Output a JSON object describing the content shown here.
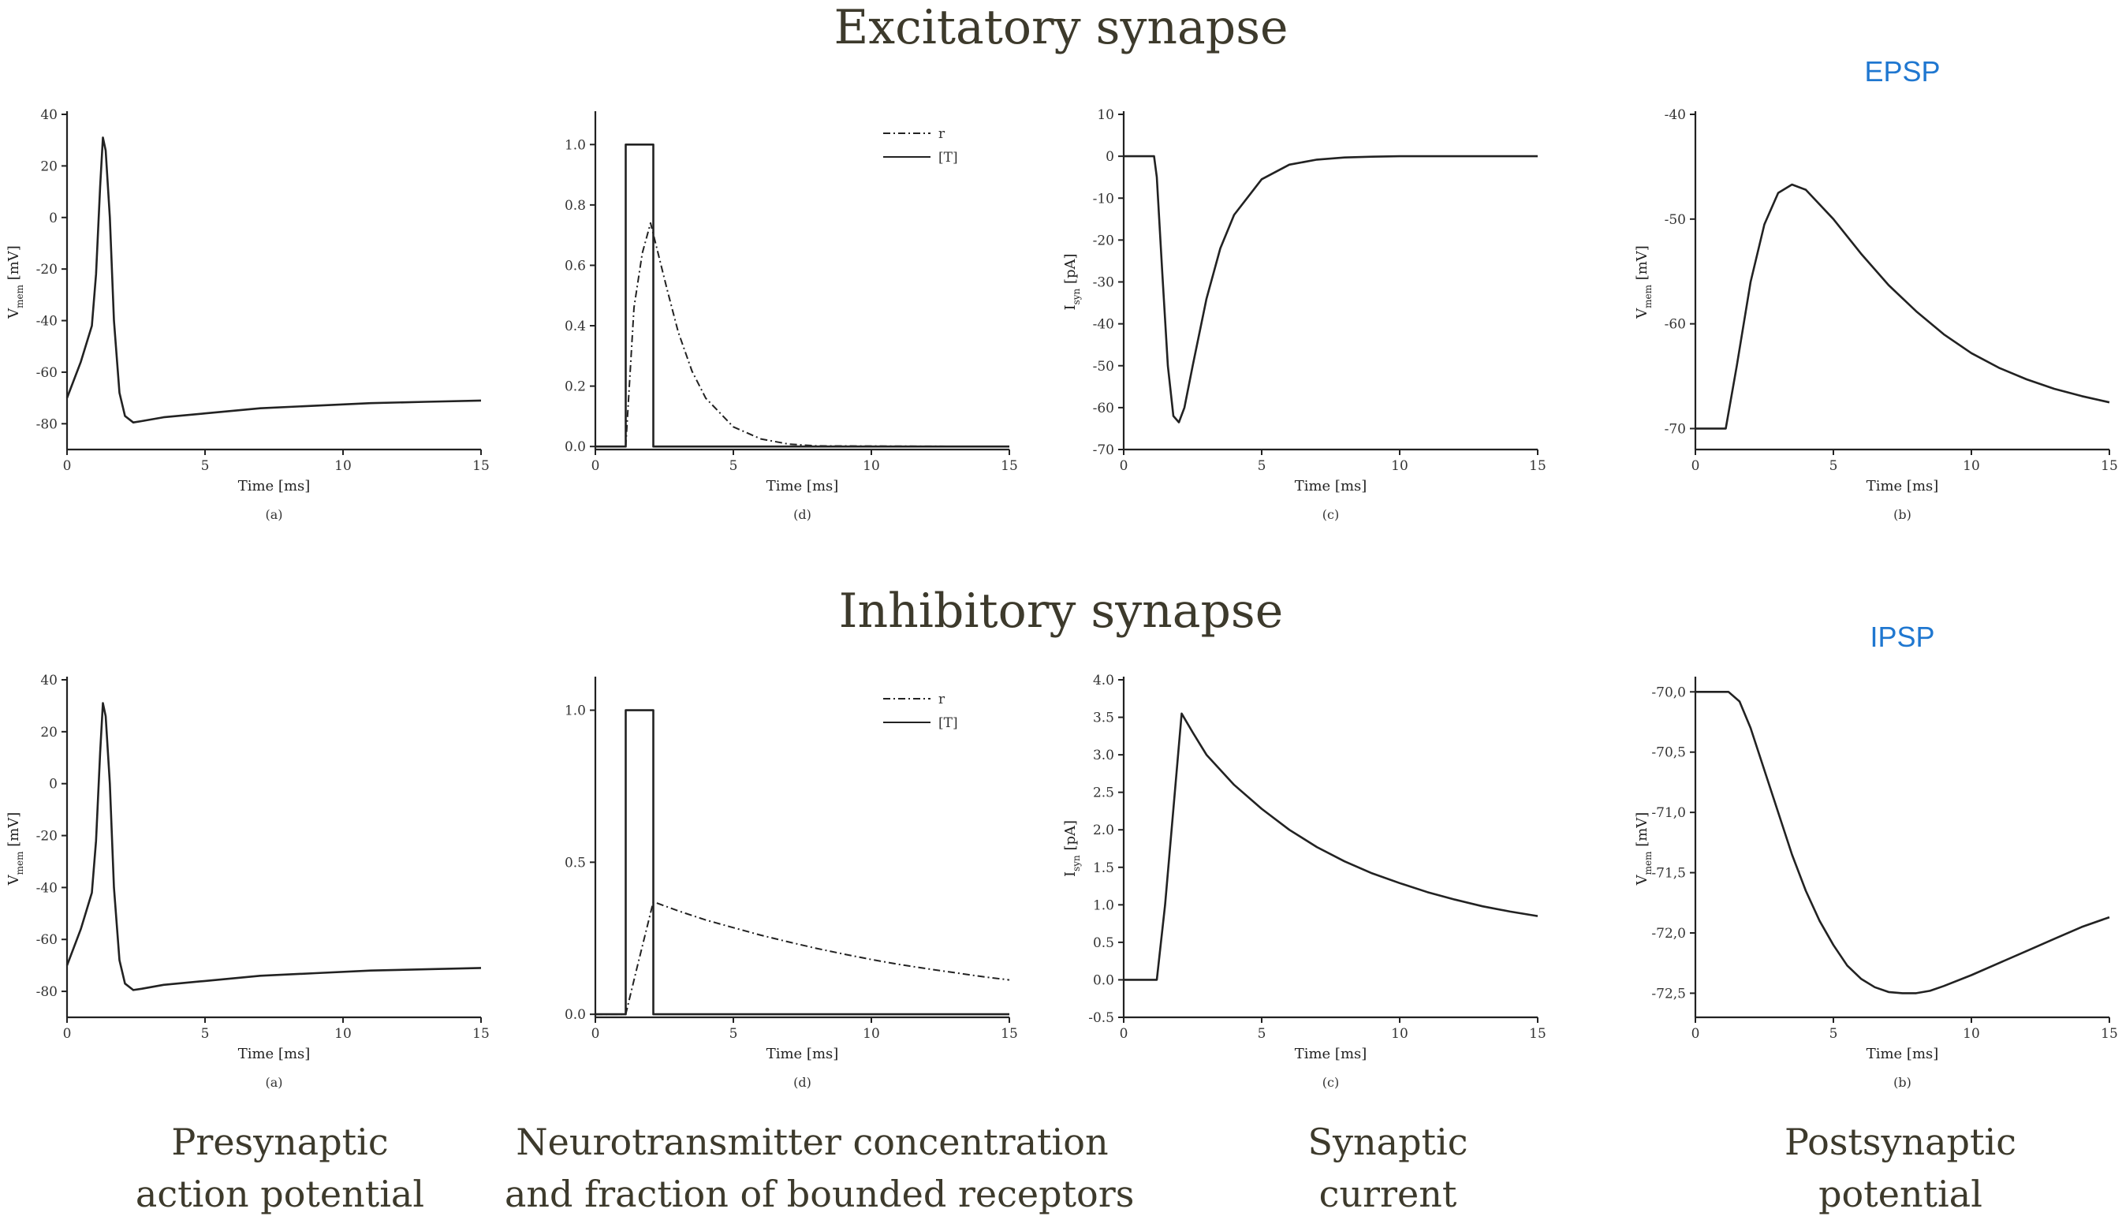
{
  "titles": {
    "excitatory": "Excitatory synapse",
    "inhibitory": "Inhibitory synapse"
  },
  "bottom_labels": [
    [
      "Presynaptic",
      "action potential"
    ],
    [
      "Neurotransmitter concentration",
      "and fraction of bounded receptors"
    ],
    [
      "Synaptic",
      "current"
    ],
    [
      "Postsynaptic",
      "potential"
    ]
  ],
  "colors": {
    "psp_title": "#1f77d0",
    "curve": "#222222",
    "heading": "#3d3a2c"
  },
  "chart_data": [
    {
      "type": "line",
      "row": "excitatory",
      "col": 0,
      "sublabel": "(a)",
      "xlabel": "Time [ms]",
      "ylabel": "V",
      "ylabel_sub": "mem",
      "ylabel_unit": " [mV]",
      "xlim": [
        0,
        15
      ],
      "ylim": [
        -90,
        40
      ],
      "xticks": [
        0,
        5,
        10,
        15
      ],
      "xticklabels": [
        "0",
        "5",
        "10",
        "15"
      ],
      "yticks": [
        -80,
        -60,
        -40,
        -20,
        0,
        20,
        40
      ],
      "yticklabels": [
        "-80",
        "-60",
        "-40",
        "-20",
        "0",
        "20",
        "40"
      ],
      "series": [
        {
          "style": "solid",
          "x": [
            0,
            0.5,
            0.9,
            1.05,
            1.2,
            1.3,
            1.4,
            1.55,
            1.7,
            1.9,
            2.1,
            2.4,
            2.7,
            3.5,
            5,
            7,
            9,
            11,
            13,
            15
          ],
          "y": [
            -70,
            -56,
            -42,
            -22,
            12,
            31,
            26,
            0,
            -40,
            -68,
            -77,
            -79.5,
            -79,
            -77.5,
            -76,
            -74,
            -73,
            -72,
            -71.5,
            -71
          ]
        }
      ]
    },
    {
      "type": "line",
      "row": "excitatory",
      "col": 1,
      "sublabel": "(d)",
      "xlabel": "Time [ms]",
      "ylabel": "",
      "ylabel_sub": "",
      "ylabel_unit": "",
      "xlim": [
        0,
        15
      ],
      "ylim": [
        -0.01,
        1.1
      ],
      "xticks": [
        0,
        5,
        10,
        15
      ],
      "xticklabels": [
        "0",
        "5",
        "10",
        "15"
      ],
      "yticks": [
        0,
        0.2,
        0.4,
        0.6,
        0.8,
        1.0
      ],
      "yticklabels": [
        "0.0",
        "0.2",
        "0.4",
        "0.6",
        "0.8",
        "1.0"
      ],
      "legend": [
        "r",
        "[T]"
      ],
      "series": [
        {
          "name": "r",
          "style": "dashdot",
          "x": [
            0,
            1.1,
            1.4,
            1.7,
            2.0,
            2.3,
            2.6,
            3,
            3.5,
            4,
            5,
            6,
            7,
            8,
            15
          ],
          "y": [
            0,
            0,
            0.46,
            0.64,
            0.74,
            0.63,
            0.52,
            0.38,
            0.25,
            0.16,
            0.065,
            0.025,
            0.008,
            0.002,
            0
          ]
        },
        {
          "name": "[T]",
          "style": "solid",
          "x": [
            0,
            1.1,
            1.1,
            2.1,
            2.1,
            15
          ],
          "y": [
            0,
            0,
            1,
            1,
            0,
            0
          ]
        }
      ]
    },
    {
      "type": "line",
      "row": "excitatory",
      "col": 2,
      "sublabel": "(c)",
      "xlabel": "Time [ms]",
      "ylabel": "I",
      "ylabel_sub": "syn",
      "ylabel_unit": " [pA]",
      "xlim": [
        0,
        15
      ],
      "ylim": [
        -70,
        10
      ],
      "xticks": [
        0,
        5,
        10,
        15
      ],
      "xticklabels": [
        "0",
        "5",
        "10",
        "15"
      ],
      "yticks": [
        -70,
        -60,
        -50,
        -40,
        -30,
        -20,
        -10,
        0,
        10
      ],
      "yticklabels": [
        "-70",
        "-60",
        "-50",
        "-40",
        "-30",
        "-20",
        "-10",
        "0",
        "10"
      ],
      "series": [
        {
          "style": "solid",
          "x": [
            0,
            1.1,
            1.2,
            1.4,
            1.6,
            1.8,
            2.0,
            2.2,
            2.5,
            3,
            3.5,
            4,
            5,
            6,
            7,
            8,
            9,
            10,
            15
          ],
          "y": [
            0,
            0,
            -5,
            -28,
            -50,
            -62,
            -63.5,
            -60,
            -50,
            -34,
            -22,
            -14,
            -5.5,
            -2,
            -0.8,
            -0.3,
            -0.1,
            0,
            0
          ]
        }
      ]
    },
    {
      "type": "line",
      "row": "excitatory",
      "col": 3,
      "sublabel": "(b)",
      "panel_title": "EPSP",
      "xlabel": "Time [ms]",
      "ylabel": "V",
      "ylabel_sub": "mem",
      "ylabel_unit": " [mV]",
      "xlim": [
        0,
        15
      ],
      "ylim": [
        -72,
        -40
      ],
      "xticks": [
        0,
        5,
        10,
        15
      ],
      "xticklabels": [
        "0",
        "5",
        "10",
        "15"
      ],
      "yticks": [
        -70,
        -60,
        -50,
        -40
      ],
      "yticklabels": [
        "-70",
        "-60",
        "-50",
        "-40"
      ],
      "series": [
        {
          "style": "solid",
          "x": [
            0,
            1.1,
            1.5,
            2,
            2.5,
            3,
            3.5,
            4,
            5,
            6,
            7,
            8,
            9,
            10,
            11,
            12,
            13,
            14,
            15
          ],
          "y": [
            -70,
            -70,
            -64,
            -56,
            -50.5,
            -47.5,
            -46.7,
            -47.2,
            -50,
            -53.3,
            -56.3,
            -58.8,
            -61,
            -62.8,
            -64.2,
            -65.3,
            -66.2,
            -66.9,
            -67.5
          ]
        }
      ]
    },
    {
      "type": "line",
      "row": "inhibitory",
      "col": 0,
      "sublabel": "(a)",
      "xlabel": "Time [ms]",
      "ylabel": "V",
      "ylabel_sub": "mem",
      "ylabel_unit": " [mV]",
      "xlim": [
        0,
        15
      ],
      "ylim": [
        -90,
        40
      ],
      "xticks": [
        0,
        5,
        10,
        15
      ],
      "xticklabels": [
        "0",
        "5",
        "10",
        "15"
      ],
      "yticks": [
        -80,
        -60,
        -40,
        -20,
        0,
        20,
        40
      ],
      "yticklabels": [
        "-80",
        "-60",
        "-40",
        "-20",
        "0",
        "20",
        "40"
      ],
      "series": [
        {
          "style": "solid",
          "x": [
            0,
            0.5,
            0.9,
            1.05,
            1.2,
            1.3,
            1.4,
            1.55,
            1.7,
            1.9,
            2.1,
            2.4,
            2.7,
            3.5,
            5,
            7,
            9,
            11,
            13,
            15
          ],
          "y": [
            -70,
            -56,
            -42,
            -22,
            12,
            31,
            26,
            0,
            -40,
            -68,
            -77,
            -79.5,
            -79,
            -77.5,
            -76,
            -74,
            -73,
            -72,
            -71.5,
            -71
          ]
        }
      ]
    },
    {
      "type": "line",
      "row": "inhibitory",
      "col": 1,
      "sublabel": "(d)",
      "xlabel": "Time [ms]",
      "ylabel": "",
      "ylabel_sub": "",
      "ylabel_unit": "",
      "xlim": [
        0,
        15
      ],
      "ylim": [
        -0.01,
        1.1
      ],
      "xticks": [
        0,
        5,
        10,
        15
      ],
      "xticklabels": [
        "0",
        "5",
        "10",
        "15"
      ],
      "yticks": [
        0,
        0.5,
        1.0
      ],
      "yticklabels": [
        "0.0",
        "0.5",
        "1.0"
      ],
      "legend": [
        "r",
        "[T]"
      ],
      "series": [
        {
          "name": "r",
          "style": "dashdot",
          "x": [
            0,
            1.1,
            1.5,
            2.1,
            3,
            4,
            5,
            6,
            7,
            8,
            9,
            10,
            11,
            12,
            13,
            14,
            15
          ],
          "y": [
            0,
            0,
            0.15,
            0.37,
            0.34,
            0.31,
            0.285,
            0.26,
            0.238,
            0.217,
            0.198,
            0.18,
            0.164,
            0.15,
            0.137,
            0.124,
            0.113
          ]
        },
        {
          "name": "[T]",
          "style": "solid",
          "x": [
            0,
            1.1,
            1.1,
            2.1,
            2.1,
            15
          ],
          "y": [
            0,
            0,
            1,
            1,
            0,
            0
          ]
        }
      ]
    },
    {
      "type": "line",
      "row": "inhibitory",
      "col": 2,
      "sublabel": "(c)",
      "xlabel": "Time [ms]",
      "ylabel": "I",
      "ylabel_sub": "syn",
      "ylabel_unit": " [pA]",
      "xlim": [
        0,
        15
      ],
      "ylim": [
        -0.5,
        4.0
      ],
      "xticks": [
        0,
        5,
        10,
        15
      ],
      "xticklabels": [
        "0",
        "5",
        "10",
        "15"
      ],
      "yticks": [
        -0.5,
        0,
        0.5,
        1.0,
        1.5,
        2.0,
        2.5,
        3.0,
        3.5,
        4.0
      ],
      "yticklabels": [
        "-0.5",
        "0.0",
        "0.5",
        "1.0",
        "1.5",
        "2.0",
        "2.5",
        "3.0",
        "3.5",
        "4.0"
      ],
      "series": [
        {
          "style": "solid",
          "x": [
            0,
            1.2,
            1.5,
            2.1,
            2.5,
            3,
            4,
            5,
            6,
            7,
            8,
            9,
            10,
            11,
            12,
            13,
            14,
            15
          ],
          "y": [
            0,
            0,
            1.0,
            3.55,
            3.3,
            3.0,
            2.6,
            2.28,
            2.0,
            1.77,
            1.58,
            1.42,
            1.29,
            1.17,
            1.07,
            0.98,
            0.91,
            0.85
          ]
        }
      ]
    },
    {
      "type": "line",
      "row": "inhibitory",
      "col": 3,
      "sublabel": "(b)",
      "panel_title": "IPSP",
      "xlabel": "Time [ms]",
      "ylabel": "V",
      "ylabel_sub": "mem",
      "ylabel_unit": " [mV]",
      "xlim": [
        0,
        15
      ],
      "ylim": [
        -72.7,
        -69.9
      ],
      "xticks": [
        0,
        5,
        10,
        15
      ],
      "xticklabels": [
        "0",
        "5",
        "10",
        "15"
      ],
      "yticks": [
        -72.5,
        -72.0,
        -71.5,
        -71.0,
        -70.5,
        -70.0
      ],
      "yticklabels": [
        "-72,5",
        "-72,0",
        "-71,5",
        "-71,0",
        "-70,5",
        "-70,0"
      ],
      "series": [
        {
          "style": "solid",
          "x": [
            0,
            1.2,
            1.6,
            2,
            2.5,
            3,
            3.5,
            4,
            4.5,
            5,
            5.5,
            6,
            6.5,
            7,
            7.5,
            8,
            8.5,
            9,
            10,
            11,
            12,
            13,
            14,
            15
          ],
          "y": [
            -70,
            -70,
            -70.08,
            -70.3,
            -70.65,
            -71.0,
            -71.35,
            -71.65,
            -71.9,
            -72.1,
            -72.27,
            -72.38,
            -72.45,
            -72.49,
            -72.5,
            -72.5,
            -72.48,
            -72.44,
            -72.35,
            -72.25,
            -72.15,
            -72.05,
            -71.95,
            -71.87
          ]
        }
      ]
    }
  ]
}
